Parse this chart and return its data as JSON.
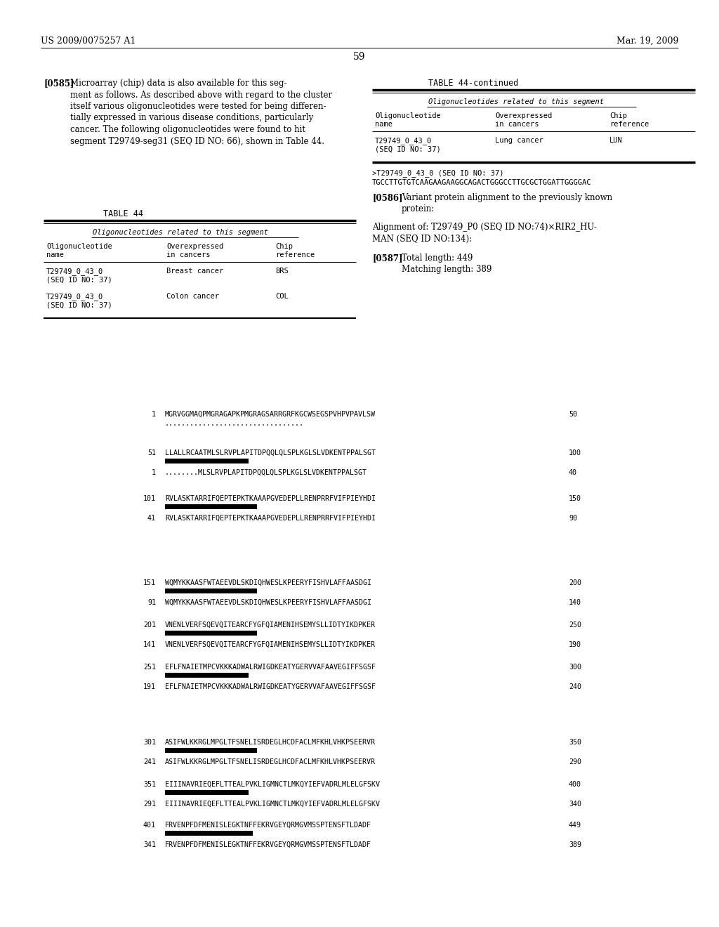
{
  "page_number": "59",
  "header_left": "US 2009/0075257 A1",
  "header_right": "Mar. 19, 2009",
  "background_color": "#ffffff",
  "text_color": "#000000",
  "para585_label": "[0585]",
  "para585_text": "Microarray (chip) data is also available for this seg-\nment as follows. As described above with regard to the cluster\nitself various oligonucleotides were tested for being differen-\ntially expressed in various disease conditions, particularly\ncancer. The following oligonucleotides were found to hit\nsegment T29749-seg31 (SEQ ID NO: 66), shown in Table 44.",
  "table44_title": "TABLE 44",
  "table44_subtitle": "Oligonucleotides related to this segment",
  "table44cont_title": "TABLE 44-continued",
  "table44cont_subtitle": "Oligonucleotides related to this segment",
  "seq_header": ">T29749_0_43_0 (SEQ ID NO: 37)",
  "seq_dna": "TGCCTTGTGTCAAGAAGAAGGCAGACTGGGCCTTGCGCTGGATTGGGGAC",
  "para586_label": "[0586]",
  "para586_text": "Variant protein alignment to the previously known\nprotein:",
  "align_header": "Alignment of: T29749_P0 (SEQ ID NO:74)×RIR2_HU-\nMAN (SEQ ID NO:134):",
  "para587_label": "[0587]",
  "para587_text": "Total length: 449\nMatching length: 389"
}
